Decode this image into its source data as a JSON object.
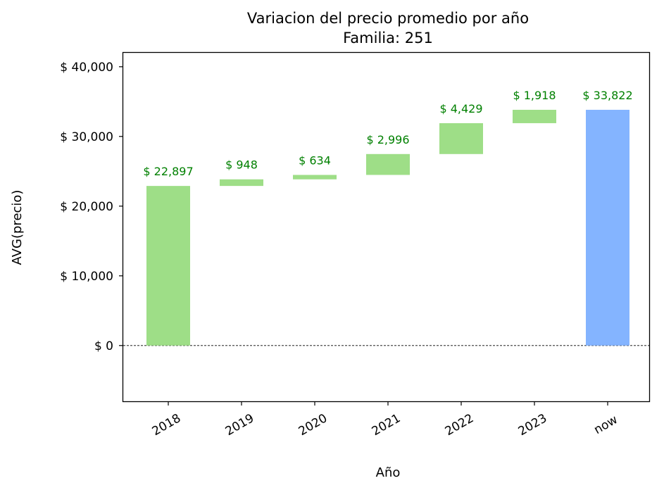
{
  "chart_data": {
    "type": "bar",
    "subtype": "waterfall",
    "title": "Variacion del precio promedio por año",
    "subtitle": "Familia: 251",
    "xlabel": "Año",
    "ylabel": "AVG(precio)",
    "categories": [
      "2018",
      "2019",
      "2020",
      "2021",
      "2022",
      "2023",
      "now"
    ],
    "values": [
      22897,
      948,
      634,
      2996,
      4429,
      1918,
      33822
    ],
    "bar_labels": [
      "$ 22,897",
      "$ 948",
      "$ 634",
      "$ 2,996",
      "$ 4,429",
      "$ 1,918",
      "$ 33,822"
    ],
    "total_category": "now",
    "ylim": [
      -8000,
      42000
    ],
    "yticks": [
      0,
      10000,
      20000,
      30000,
      40000
    ],
    "ytick_labels": [
      "$ 0",
      "$ 10,000",
      "$ 20,000",
      "$ 30,000",
      "$ 40,000"
    ],
    "zero_line": "dashed",
    "grid": false,
    "legend": "none",
    "colors": {
      "increase": "#9ede87",
      "total": "#84b4ff",
      "label": "#008000",
      "axis": "#000000"
    }
  }
}
